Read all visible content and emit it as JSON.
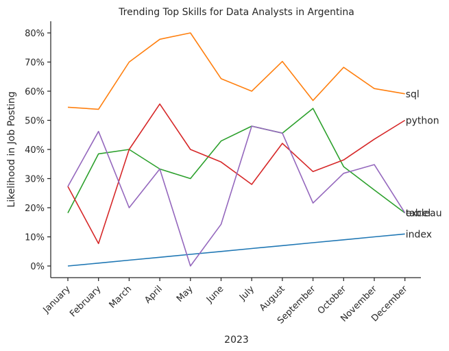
{
  "chart_data": {
    "type": "line",
    "title": "Trending Top Skills for Data Analysts in Argentina",
    "xlabel": "2023",
    "ylabel": "Likelihood in Job Posting",
    "categories": [
      "January",
      "February",
      "March",
      "April",
      "May",
      "June",
      "July",
      "August",
      "September",
      "October",
      "November",
      "December"
    ],
    "yticks": [
      "0%",
      "10%",
      "20%",
      "30%",
      "40%",
      "50%",
      "60%",
      "70%",
      "80%"
    ],
    "ylim": [
      -4,
      84
    ],
    "grid": false,
    "legend": "none",
    "series": [
      {
        "name": "index",
        "color": "#1f77b4",
        "values": [
          0,
          1,
          2,
          3,
          4,
          5,
          6,
          7,
          8,
          9,
          10,
          11
        ]
      },
      {
        "name": "sql",
        "color": "#ff7f0e",
        "values": [
          54.5,
          53.8,
          70.0,
          77.8,
          80.0,
          64.3,
          60.0,
          70.2,
          56.8,
          68.2,
          60.9,
          59.1
        ]
      },
      {
        "name": "excel",
        "color": "#2ca02c",
        "values": [
          18.2,
          38.5,
          40.0,
          33.3,
          30.0,
          42.9,
          48.0,
          45.6,
          54.1,
          34.1,
          26.1,
          18.2
        ]
      },
      {
        "name": "python",
        "color": "#d62728",
        "values": [
          27.3,
          7.7,
          40.0,
          55.6,
          40.0,
          35.7,
          28.0,
          42.1,
          32.4,
          36.4,
          43.5,
          50.0
        ]
      },
      {
        "name": "tableau",
        "color": "#9467bd",
        "values": [
          27.3,
          46.2,
          20.0,
          33.3,
          0.0,
          14.3,
          48.0,
          45.6,
          21.6,
          31.8,
          34.8,
          18.2
        ]
      }
    ]
  }
}
